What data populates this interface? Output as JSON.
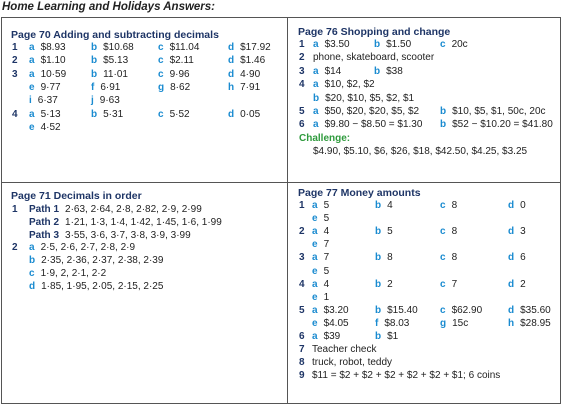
{
  "header": {
    "title": "Home Learning and Holidays Answers:"
  },
  "boxes": [
    {
      "title": "Page 70 Adding and subtracting decimals",
      "lines": [
        {
          "num": "1",
          "items": [
            {
              "letter": "a",
              "text": "$8.93"
            },
            {
              "letter": "b",
              "text": "$10.68"
            },
            {
              "letter": "c",
              "text": "$11.04"
            },
            {
              "letter": "d",
              "text": "$17.92"
            }
          ]
        },
        {
          "num": "2",
          "items": [
            {
              "letter": "a",
              "text": "$1.10"
            },
            {
              "letter": "b",
              "text": "$5.13"
            },
            {
              "letter": "c",
              "text": "$2.11"
            },
            {
              "letter": "d",
              "text": "$1.46"
            }
          ]
        },
        {
          "num": "3",
          "items": [
            {
              "letter": "a",
              "text": "10·59"
            },
            {
              "letter": "b",
              "text": "11·01"
            },
            {
              "letter": "c",
              "text": "9·96"
            },
            {
              "letter": "d",
              "text": "4·90"
            }
          ]
        },
        {
          "items": [
            {
              "letter": "e",
              "text": "9·77"
            },
            {
              "letter": "f",
              "text": "6·91"
            },
            {
              "letter": "g",
              "text": "8·62"
            },
            {
              "letter": "h",
              "text": "7·91"
            }
          ]
        },
        {
          "items": [
            {
              "letter": "i",
              "text": "6·37"
            },
            {
              "letter": "j",
              "text": "9·63"
            }
          ]
        },
        {
          "num": "4",
          "items": [
            {
              "letter": "a",
              "text": "5·13"
            },
            {
              "letter": "b",
              "text": "5·31"
            },
            {
              "letter": "c",
              "text": "5·52"
            },
            {
              "letter": "d",
              "text": "0·05"
            }
          ]
        },
        {
          "items": [
            {
              "letter": "e",
              "text": "4·52"
            }
          ]
        }
      ]
    },
    {
      "title": "Page 76 Shopping and change",
      "lines": [
        {
          "num": "1",
          "items": [
            {
              "letter": "a",
              "text": "$3.50"
            },
            {
              "letter": "b",
              "text": "$1.50"
            },
            {
              "letter": "c",
              "text": "20c"
            }
          ]
        },
        {
          "num": "2",
          "items": [
            {
              "text": "phone, skateboard, scooter"
            }
          ]
        },
        {
          "num": "3",
          "items": [
            {
              "letter": "a",
              "text": "$14"
            },
            {
              "letter": "b",
              "text": "$38"
            }
          ]
        },
        {
          "num": "4",
          "items": [
            {
              "letter": "a",
              "text": "$10, $2, $2"
            }
          ]
        },
        {
          "items": [
            {
              "letter": "b",
              "text": "$20, $10, $5, $2, $1"
            }
          ]
        },
        {
          "num": "5",
          "items": [
            {
              "letter": "a",
              "text": "$50, $20, $20, $5, $2"
            },
            {
              "letter": "b",
              "text": "$10, $5, $1, 50c, 20c"
            }
          ]
        },
        {
          "num": "6",
          "items": [
            {
              "letter": "a",
              "text": "$9.80 − $8.50 = $1.30"
            },
            {
              "letter": "b",
              "text": "$52 − $10.20 = $41.80"
            }
          ]
        },
        {
          "heading": "Challenge:"
        },
        {
          "items": [
            {
              "text": "$4.90, $5.10, $6, $26, $18, $42.50, $4.25, $3.25"
            }
          ]
        }
      ]
    },
    {
      "title": "Page 71 Decimals in order",
      "lines": [
        {
          "num": "1",
          "items": [
            {
              "label": "Path 1",
              "text": "2·63, 2·64, 2·8, 2·82, 2·9, 2·99"
            }
          ]
        },
        {
          "items": [
            {
              "label": "Path 2",
              "text": "1·21, 1·3, 1·4, 1·42, 1·45, 1·6, 1·99"
            }
          ]
        },
        {
          "items": [
            {
              "label": "Path 3",
              "text": "3·55, 3·6, 3·7, 3·8, 3·9, 3·99"
            }
          ]
        },
        {
          "num": "2",
          "items": [
            {
              "letter": "a",
              "text": "2·5, 2·6, 2·7, 2·8, 2·9"
            }
          ]
        },
        {
          "items": [
            {
              "letter": "b",
              "text": "2·35, 2·36, 2·37, 2·38, 2·39"
            }
          ]
        },
        {
          "items": [
            {
              "letter": "c",
              "text": "1·9, 2, 2·1, 2·2"
            }
          ]
        },
        {
          "items": [
            {
              "letter": "d",
              "text": "1·85, 1·95, 2·05, 2·15, 2·25"
            }
          ]
        }
      ]
    },
    {
      "title": "Page 77 Money amounts",
      "lines": [
        {
          "num": "1",
          "items": [
            {
              "letter": "a",
              "text": "5"
            },
            {
              "letter": "b",
              "text": "4"
            },
            {
              "letter": "c",
              "text": "8"
            },
            {
              "letter": "d",
              "text": "0"
            }
          ]
        },
        {
          "items": [
            {
              "letter": "e",
              "text": "5"
            }
          ]
        },
        {
          "num": "2",
          "items": [
            {
              "letter": "a",
              "text": "4"
            },
            {
              "letter": "b",
              "text": "5"
            },
            {
              "letter": "c",
              "text": "8"
            },
            {
              "letter": "d",
              "text": "3"
            }
          ]
        },
        {
          "items": [
            {
              "letter": "e",
              "text": "7"
            }
          ]
        },
        {
          "num": "3",
          "items": [
            {
              "letter": "a",
              "text": "7"
            },
            {
              "letter": "b",
              "text": "8"
            },
            {
              "letter": "c",
              "text": "8"
            },
            {
              "letter": "d",
              "text": "6"
            }
          ]
        },
        {
          "items": [
            {
              "letter": "e",
              "text": "5"
            }
          ]
        },
        {
          "num": "4",
          "items": [
            {
              "letter": "a",
              "text": "4"
            },
            {
              "letter": "b",
              "text": "2"
            },
            {
              "letter": "c",
              "text": "7"
            },
            {
              "letter": "d",
              "text": "2"
            }
          ]
        },
        {
          "items": [
            {
              "letter": "e",
              "text": "1"
            }
          ]
        },
        {
          "num": "5",
          "items": [
            {
              "letter": "a",
              "text": "$3.20"
            },
            {
              "letter": "b",
              "text": "$15.40"
            },
            {
              "letter": "c",
              "text": "$62.90"
            },
            {
              "letter": "d",
              "text": "$35.60"
            }
          ]
        },
        {
          "items": [
            {
              "letter": "e",
              "text": "$4.05"
            },
            {
              "letter": "f",
              "text": "$8.03"
            },
            {
              "letter": "g",
              "text": "15c"
            },
            {
              "letter": "h",
              "text": "$28.95"
            }
          ]
        },
        {
          "num": "6",
          "items": [
            {
              "letter": "a",
              "text": "$39"
            },
            {
              "letter": "b",
              "text": "$1"
            }
          ]
        },
        {
          "num": "7",
          "items": [
            {
              "text": "Teacher check"
            }
          ]
        },
        {
          "num": "8",
          "items": [
            {
              "text": "truck, robot, teddy"
            }
          ]
        },
        {
          "num": "9",
          "items": [
            {
              "text": "$11 = $2 + $2 + $2 + $2 + $2 + $1; 6 coins"
            }
          ]
        }
      ]
    }
  ]
}
